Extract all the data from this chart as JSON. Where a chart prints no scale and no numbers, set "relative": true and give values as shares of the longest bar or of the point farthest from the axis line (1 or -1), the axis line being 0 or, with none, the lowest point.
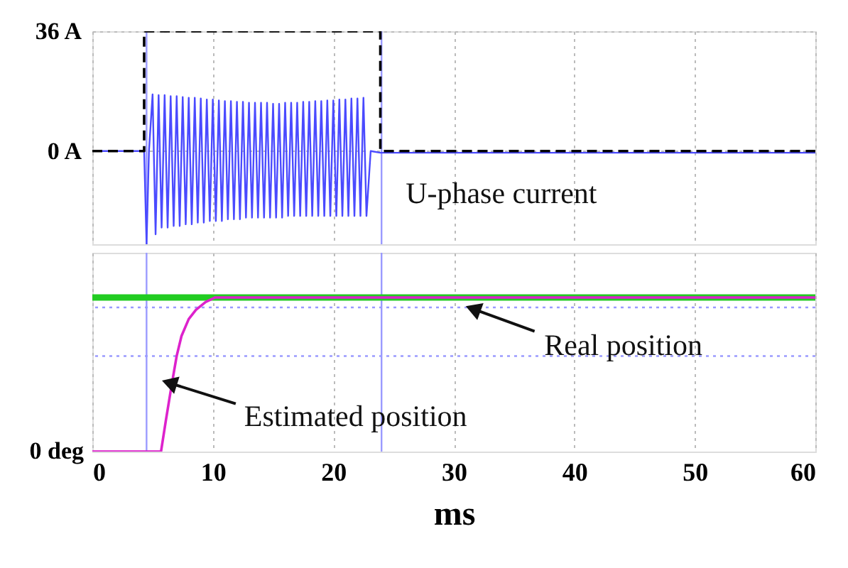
{
  "chart_data": [
    {
      "type": "line",
      "xlim": [
        0,
        60
      ],
      "xticks": [
        0,
        10,
        20,
        30,
        40,
        50,
        60
      ],
      "ylim": [
        -28,
        36
      ],
      "yticks": [
        {
          "value": 0,
          "label": "0 A"
        },
        {
          "value": 36,
          "label": "36 A"
        }
      ],
      "tick_labels": "y",
      "grid": true,
      "series": [
        {
          "name": "U-phase current",
          "color": "#4a4aff",
          "x": [
            0,
            4.3,
            4.5,
            4.7,
            5,
            5.25,
            5.5,
            5.75,
            6,
            6.25,
            6.5,
            6.75,
            7,
            7.25,
            7.5,
            7.75,
            8,
            8.25,
            8.5,
            8.75,
            9,
            9.25,
            9.5,
            9.75,
            10,
            10.25,
            10.5,
            10.75,
            11,
            11.25,
            11.5,
            11.75,
            12,
            12.25,
            12.5,
            12.75,
            13,
            13.25,
            13.5,
            13.75,
            14,
            14.25,
            14.5,
            14.75,
            15,
            15.25,
            15.5,
            15.75,
            16,
            16.25,
            16.5,
            16.75,
            17,
            17.25,
            17.5,
            17.75,
            18,
            18.25,
            18.5,
            18.75,
            19,
            19.25,
            19.5,
            19.75,
            20,
            20.25,
            20.5,
            20.75,
            21,
            21.25,
            21.5,
            21.75,
            22,
            22.25,
            22.5,
            22.75,
            23.1,
            23.9,
            60
          ],
          "values": [
            0,
            0,
            -28,
            0,
            17,
            -25,
            16.8,
            -23,
            16.8,
            -23,
            16.5,
            -22.5,
            16.5,
            -22.5,
            16.2,
            -22,
            16,
            -22,
            16,
            -21.5,
            15.8,
            -21.5,
            15.5,
            -21,
            15.5,
            -21,
            15.2,
            -21,
            15,
            -20.5,
            15,
            -20.5,
            14.8,
            -20.5,
            14.8,
            -20,
            14.5,
            -20,
            14.5,
            -20,
            14.5,
            -20,
            14.5,
            -20,
            14.2,
            -20,
            14.2,
            -20,
            14.5,
            -19.5,
            14.5,
            -19.5,
            14.5,
            -19.5,
            14.8,
            -19.5,
            14.8,
            -19.5,
            15,
            -19.5,
            15,
            -19.5,
            15.2,
            -19.5,
            15.2,
            -19.5,
            15.5,
            -19.5,
            15.5,
            -19.5,
            15.8,
            -19.5,
            15.8,
            -19.5,
            16,
            -19.5,
            0,
            -0.5,
            -0.5
          ]
        },
        {
          "color": "#000000",
          "line_style": "dashed",
          "x": [
            0,
            4.3,
            4.3,
            23.9,
            23.9,
            60
          ],
          "values": [
            0,
            0,
            36,
            36,
            0,
            0
          ]
        }
      ],
      "ref_lines": [
        {
          "axis": "x",
          "value": 4.5,
          "color": "#9a9aff",
          "line_style": "solid"
        },
        {
          "axis": "x",
          "value": 24,
          "color": "#9a9aff",
          "line_style": "solid"
        }
      ]
    },
    {
      "type": "line",
      "relative": true,
      "xlim": [
        0,
        60
      ],
      "xticks": [
        0,
        10,
        20,
        30,
        40,
        50,
        60
      ],
      "xlabel": "ms",
      "grid": true,
      "annotations": [
        {
          "text": "0 deg",
          "x": 0,
          "y": 0
        }
      ],
      "series": [
        {
          "name": "Real position",
          "color": "#22cc22",
          "x": [
            0,
            60
          ],
          "values": [
            1,
            1
          ]
        },
        {
          "name": "Estimated position",
          "color": "#dd22cc",
          "x": [
            0,
            5.7,
            6.1,
            6.6,
            7.0,
            7.4,
            8.0,
            8.6,
            9.4,
            10.2,
            60
          ],
          "values": [
            0,
            0,
            0.2,
            0.44,
            0.62,
            0.75,
            0.86,
            0.92,
            0.97,
            1,
            1
          ]
        }
      ],
      "ref_lines": [
        {
          "axis": "x",
          "value": 4.5,
          "color": "#9a9aff",
          "line_style": "solid"
        },
        {
          "axis": "x",
          "value": 24,
          "color": "#9a9aff",
          "line_style": "solid"
        },
        {
          "axis": "y",
          "value": 0.935,
          "color": "#9a9aff",
          "line_style": "dotted"
        },
        {
          "axis": "y",
          "value": 0.62,
          "color": "#9a9aff",
          "line_style": "dotted"
        }
      ]
    }
  ]
}
